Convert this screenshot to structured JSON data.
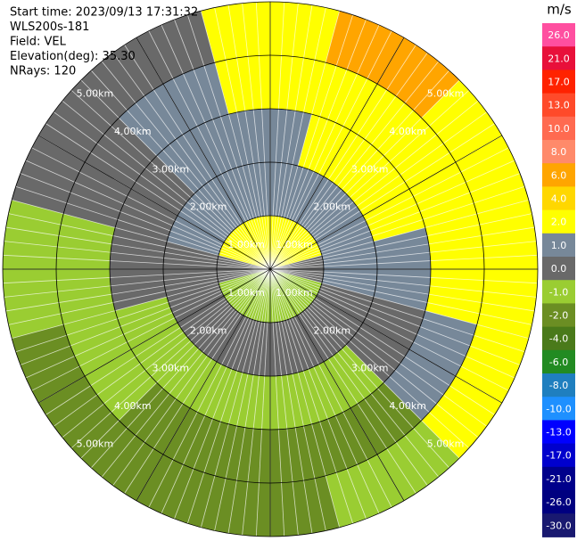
{
  "chart_data": {
    "type": "ppi",
    "header": [
      "Start time: 2023/09/13 17:31:32",
      "WLS200s-181",
      "Field: VEL",
      "Elevation(deg): 35.30",
      "NRays: 120"
    ],
    "nrays": 120,
    "range_max": 5,
    "rings": [
      {
        "value": 1,
        "label": "1.00km"
      },
      {
        "value": 2,
        "label": "2.00km"
      },
      {
        "value": 3,
        "label": "3.00km"
      },
      {
        "value": 4,
        "label": "4.00km"
      },
      {
        "value": 5,
        "label": "5.00km"
      }
    ],
    "field": [
      [
        2,
        2,
        2,
        0,
        -1,
        -1,
        -1,
        -1,
        -1,
        0,
        2,
        2
      ],
      [
        1,
        1,
        1,
        1,
        0,
        0,
        0,
        0,
        0,
        0,
        1,
        1
      ],
      [
        1,
        2,
        2,
        1,
        0,
        -1,
        -1,
        -1,
        -1,
        0,
        0,
        1
      ],
      [
        2,
        2,
        2,
        2,
        1,
        -2,
        -2,
        -2,
        -1,
        -1,
        0,
        1
      ],
      [
        2,
        6,
        2,
        2,
        2,
        -1,
        -2,
        -2,
        -2,
        -1,
        0,
        0
      ]
    ],
    "colorbar": {
      "label": "m/s",
      "ticks": [
        {
          "value": 26,
          "label": "26.0"
        },
        {
          "value": 21,
          "label": "21.0"
        },
        {
          "value": 17,
          "label": "17.0"
        },
        {
          "value": 13,
          "label": "13.0"
        },
        {
          "value": 10,
          "label": "10.0"
        },
        {
          "value": 8,
          "label": "8.0"
        },
        {
          "value": 6,
          "label": "6.0"
        },
        {
          "value": 4,
          "label": "4.0"
        },
        {
          "value": 2,
          "label": "2.0"
        },
        {
          "value": 1,
          "label": "1.0"
        },
        {
          "value": 0,
          "label": "0.0"
        },
        {
          "value": -1,
          "label": "-1.0"
        },
        {
          "value": -2,
          "label": "-2.0"
        },
        {
          "value": -4,
          "label": "-4.0"
        },
        {
          "value": -6,
          "label": "-6.0"
        },
        {
          "value": -8,
          "label": "-8.0"
        },
        {
          "value": -10,
          "label": "-10.0"
        },
        {
          "value": -13,
          "label": "-13.0"
        },
        {
          "value": -17,
          "label": "-17.0"
        },
        {
          "value": -21,
          "label": "-21.0"
        },
        {
          "value": -26,
          "label": "-26.0"
        },
        {
          "value": -30,
          "label": "-30.0"
        }
      ],
      "colors": [
        "#ff4fa0",
        "#e8103a",
        "#ff2200",
        "#ff4a2a",
        "#ff6a50",
        "#ff8a6a",
        "#ffa500",
        "#ffd700",
        "#ffff00",
        "#778899",
        "#696969",
        "#9acd32",
        "#6b8e23",
        "#4a7a1a",
        "#228b22",
        "#1f7fbf",
        "#1e90ff",
        "#0000ff",
        "#0000cd",
        "#00008b",
        "#000080",
        "#191970"
      ]
    }
  }
}
